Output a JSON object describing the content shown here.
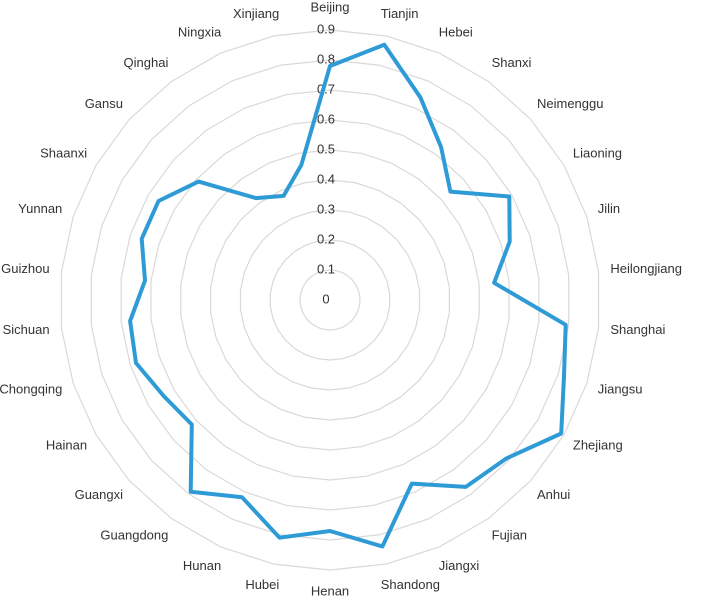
{
  "chart_data": {
    "type": "radar",
    "categories": [
      "Beijing",
      "Tianjin",
      "Hebei",
      "Shanxi",
      "Neimenggu",
      "Liaoning",
      "Jilin",
      "Heilongjiang",
      "Shanghai",
      "Jiangsu",
      "Zhejiang",
      "Anhui",
      "Fujian",
      "Jiangxi",
      "Shandong",
      "Henan",
      "Hubei",
      "Hunan",
      "Guangdong",
      "Guangxi",
      "Hainan",
      "Chongqing",
      "Sichuan",
      "Guizhou",
      "Yunnan",
      "Shaanxi",
      "Gansu",
      "Qinghai",
      "Ningxia",
      "Xinjiang"
    ],
    "values": [
      0.78,
      0.87,
      0.74,
      0.63,
      0.54,
      0.69,
      0.63,
      0.55,
      0.79,
      0.82,
      0.89,
      0.79,
      0.77,
      0.67,
      0.84,
      0.77,
      0.81,
      0.72,
      0.79,
      0.62,
      0.64,
      0.68,
      0.67,
      0.62,
      0.66,
      0.66,
      0.59,
      0.42,
      0.38,
      0.46
    ],
    "color": "#2e9bd6",
    "ylim": [
      0,
      0.9
    ],
    "yticks": [
      0,
      0.1,
      0.2,
      0.3,
      0.4,
      0.5,
      0.6,
      0.7,
      0.8,
      0.9
    ],
    "grid": true
  }
}
